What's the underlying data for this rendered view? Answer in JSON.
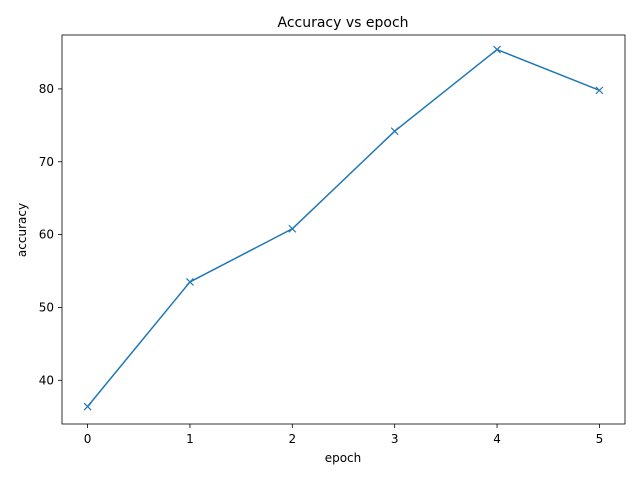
{
  "chart_data": {
    "type": "line",
    "title": "Accuracy vs epoch",
    "xlabel": "epoch",
    "ylabel": "accuracy",
    "x": [
      0,
      1,
      2,
      3,
      4,
      5
    ],
    "xticks": [
      "0",
      "1",
      "2",
      "3",
      "4",
      "5"
    ],
    "yticks": [
      "40",
      "50",
      "60",
      "70",
      "80"
    ],
    "ylim": [
      34.0,
      87.4
    ],
    "xlim": [
      -0.25,
      5.25
    ],
    "grid": false,
    "series": [
      {
        "values": [
          36.4,
          53.5,
          60.8,
          74.2,
          85.4,
          79.8
        ],
        "color": "#1f77b4",
        "marker": "x"
      }
    ]
  }
}
